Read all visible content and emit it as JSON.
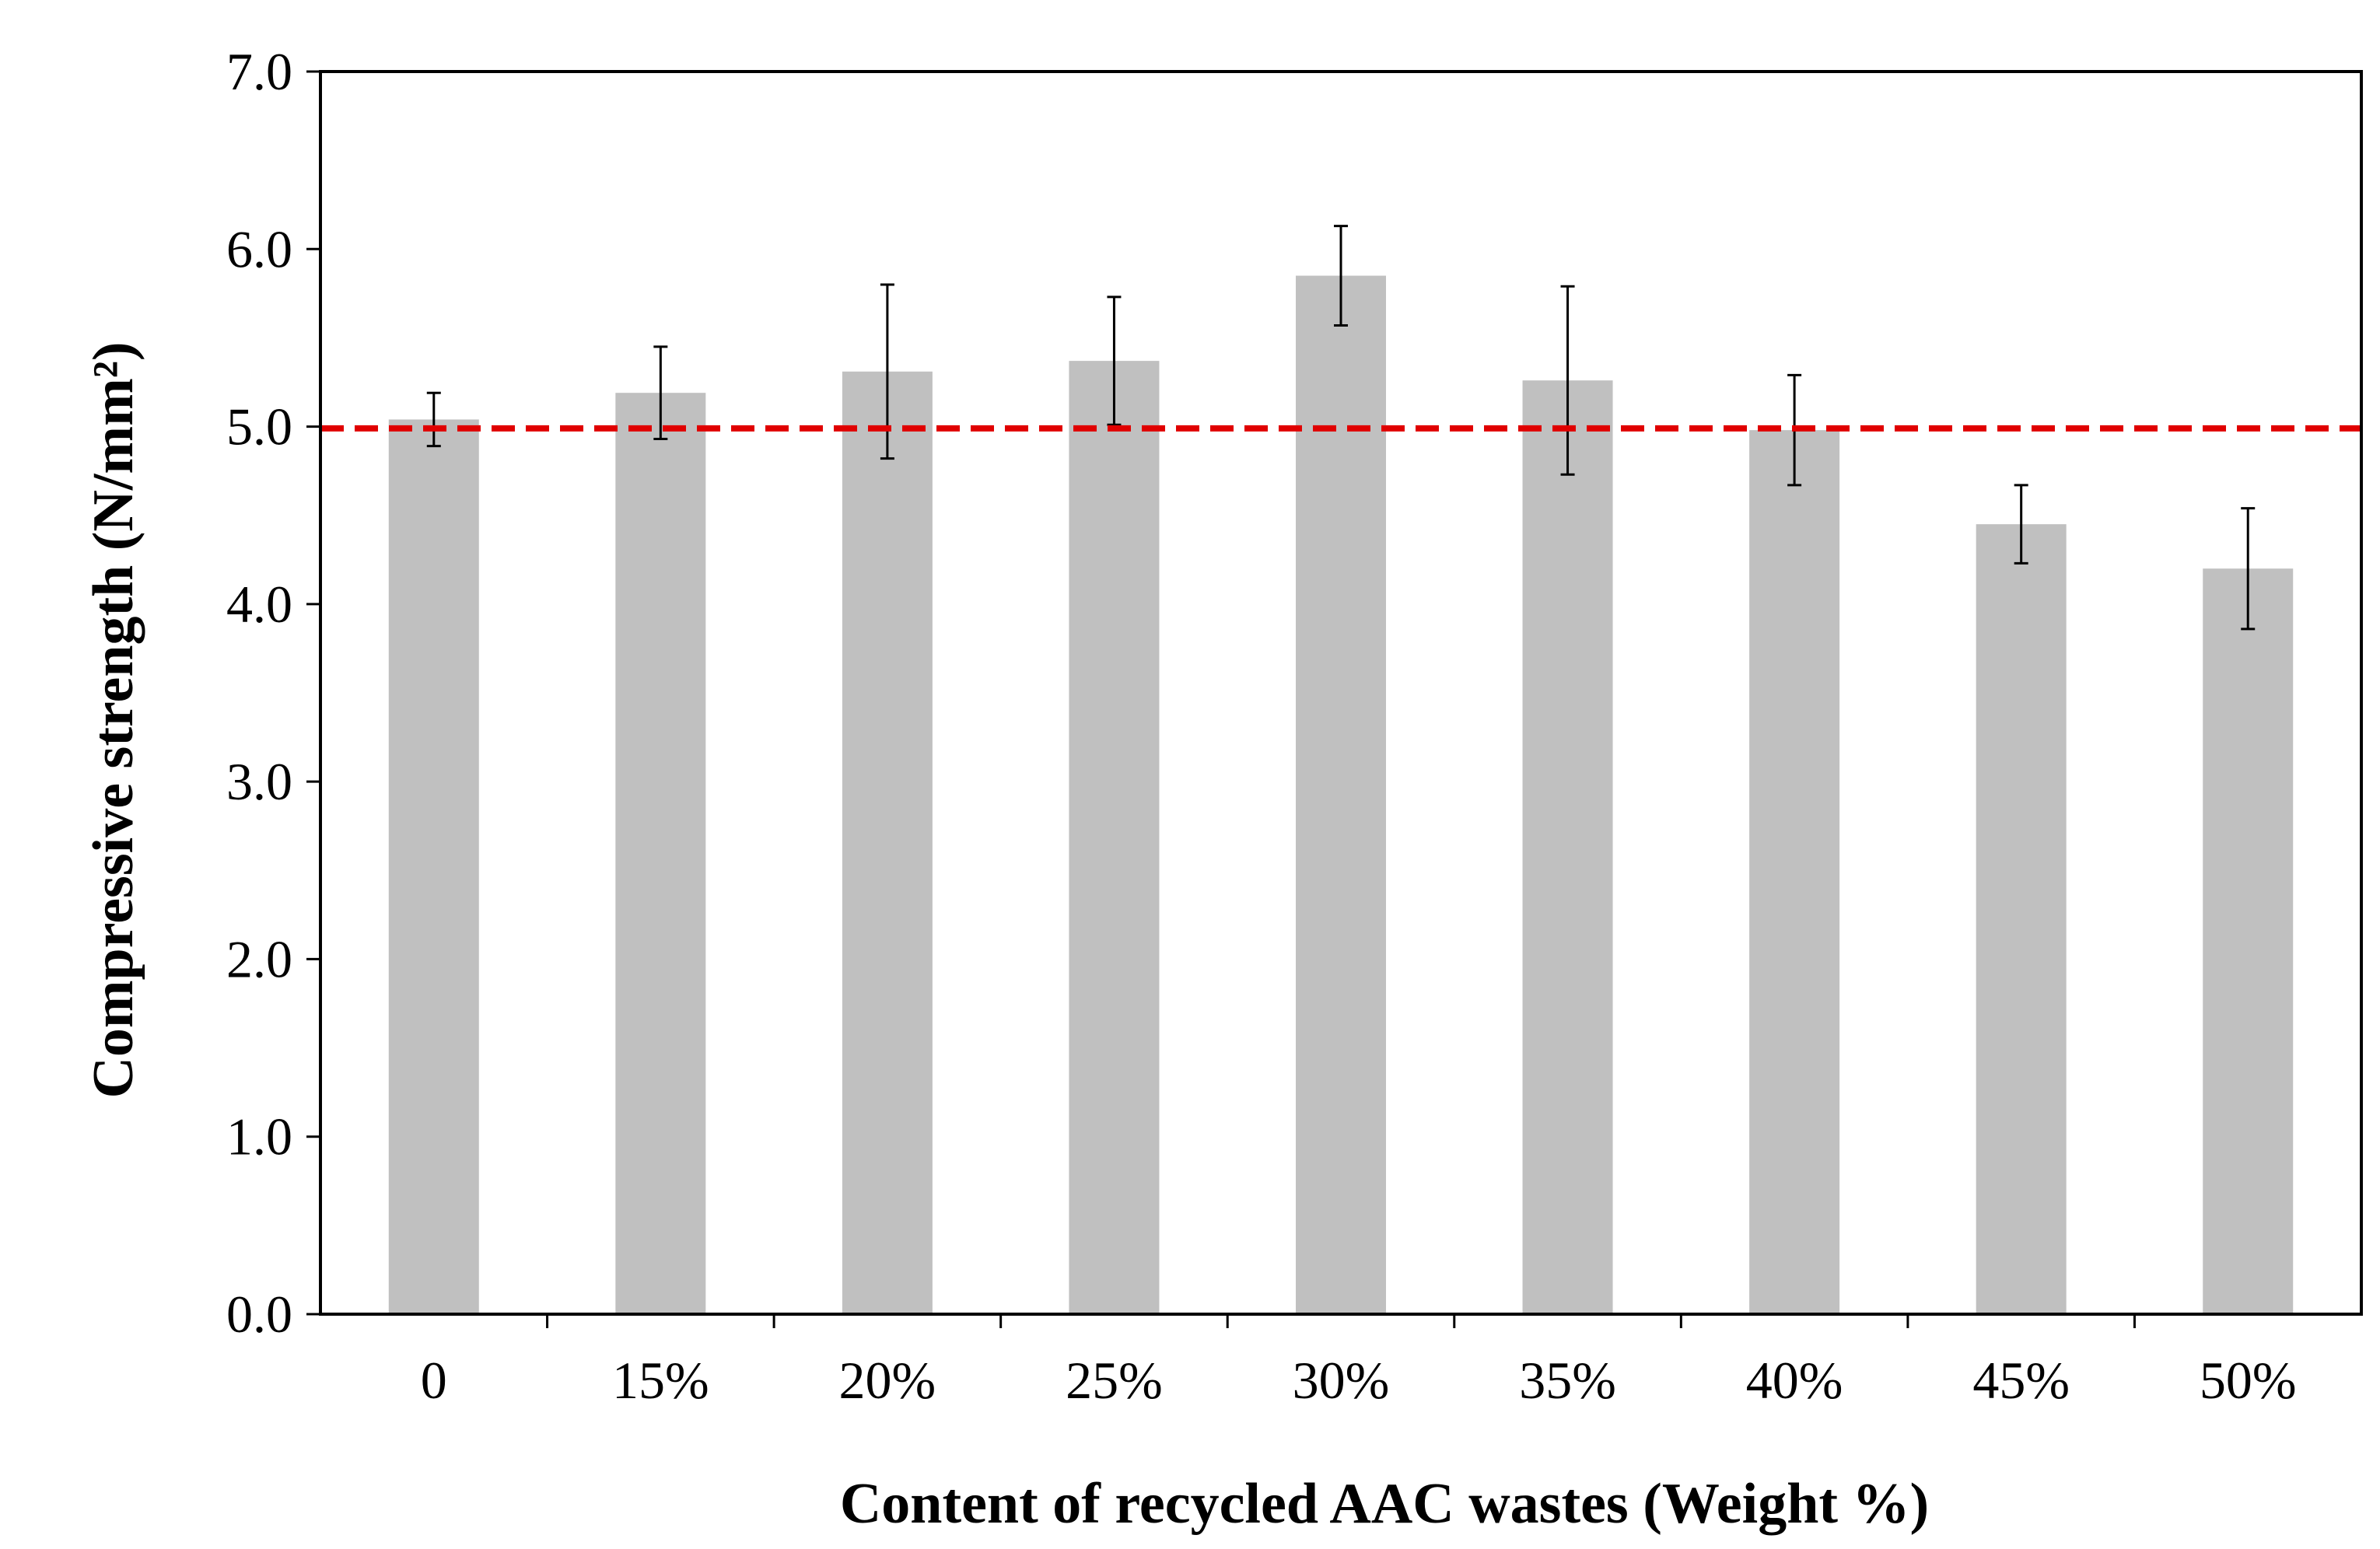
{
  "chart_data": {
    "type": "bar",
    "title": "",
    "xlabel": "Content of recycled AAC wastes (Weight %)",
    "ylabel": "Compressive strength (N/mm²)",
    "categories": [
      "0",
      "15%",
      "20%",
      "25%",
      "30%",
      "35%",
      "40%",
      "45%",
      "50%"
    ],
    "values": [
      5.04,
      5.19,
      5.31,
      5.37,
      5.85,
      5.26,
      4.98,
      4.45,
      4.2
    ],
    "error_bars": [
      0.15,
      0.26,
      0.49,
      0.36,
      0.28,
      0.53,
      0.31,
      0.22,
      0.34
    ],
    "reference_line": {
      "value": 4.99,
      "color": "#e00000",
      "style": "dashed"
    },
    "ylim": [
      0,
      7
    ],
    "yticks": [
      "0.0",
      "1.0",
      "2.0",
      "3.0",
      "4.0",
      "5.0",
      "6.0",
      "7.0"
    ],
    "bar_color": "#c0c0c0",
    "grid": false,
    "legend": "none"
  }
}
